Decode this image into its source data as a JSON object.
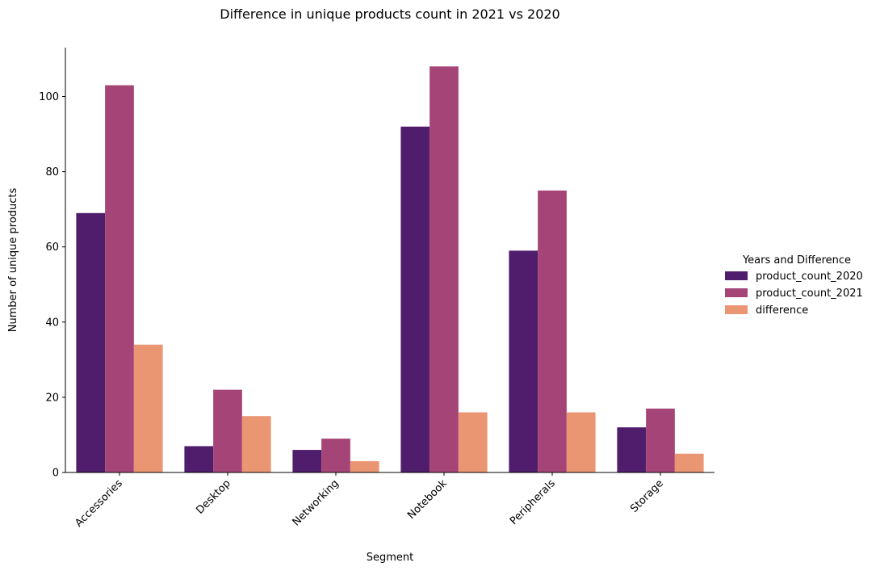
{
  "chart_data": {
    "type": "bar",
    "title": "Difference in unique products count in 2021 vs 2020",
    "xlabel": "Segment",
    "ylabel": "Number of unique products",
    "categories": [
      "Accessories",
      "Desktop",
      "Networking",
      "Notebook",
      "Peripherals",
      "Storage"
    ],
    "series": [
      {
        "name": "product_count_2020",
        "color": "#501d6c",
        "values": [
          69,
          7,
          6,
          92,
          59,
          12
        ]
      },
      {
        "name": "product_count_2021",
        "color": "#a54477",
        "values": [
          103,
          22,
          9,
          108,
          75,
          17
        ]
      },
      {
        "name": "difference",
        "color": "#ea9673",
        "values": [
          34,
          15,
          3,
          16,
          16,
          5
        ]
      }
    ],
    "yticks": [
      0,
      20,
      40,
      60,
      80,
      100
    ],
    "ylim": [
      0,
      113
    ],
    "grid": false,
    "legend": {
      "title": "Years and Difference",
      "placement": "right"
    },
    "xtick_rotation": 45
  }
}
